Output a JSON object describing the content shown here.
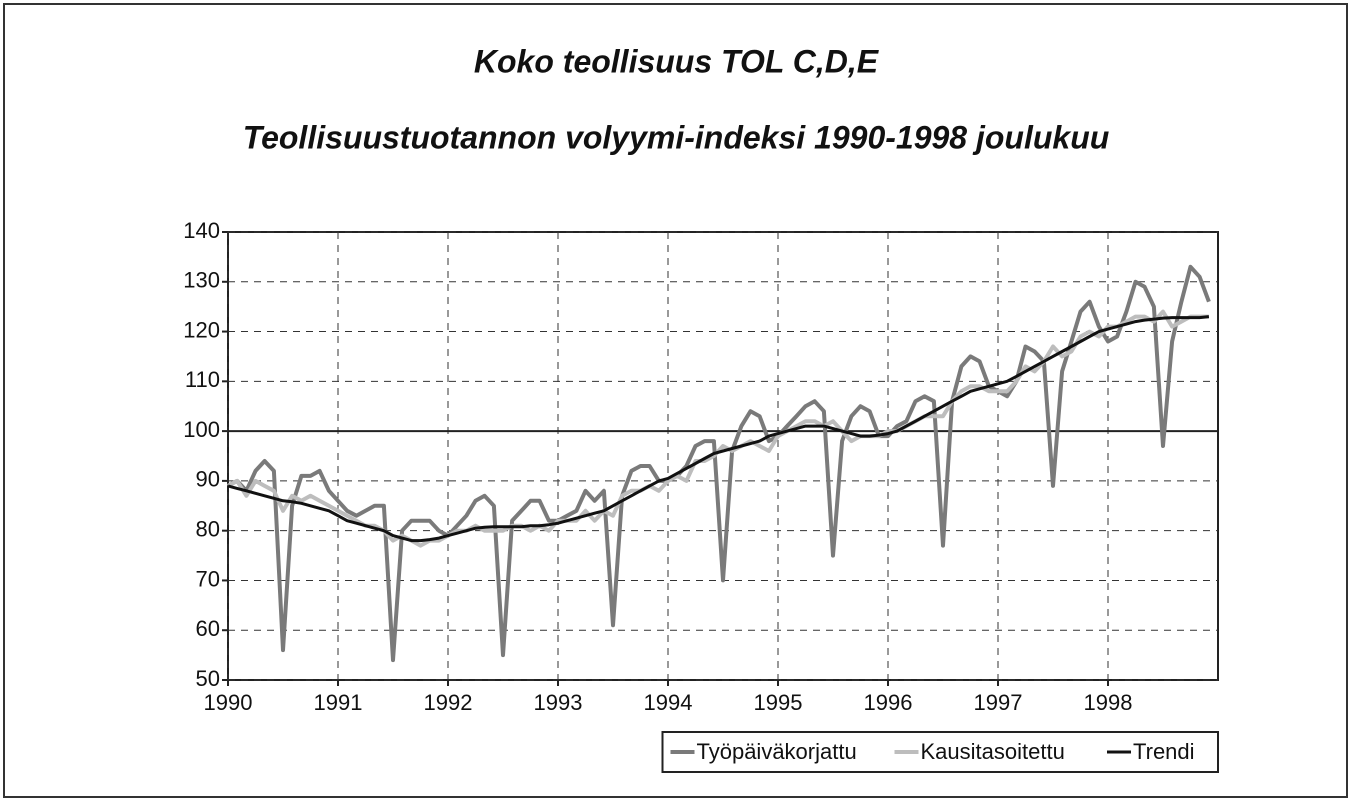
{
  "chart_data": {
    "type": "line",
    "title": "Koko teollisuus TOL C,D,E",
    "subtitle": "Teollisuustuotannon volyymi-indeksi 1990-1998 joulukuu",
    "xlim": [
      1990,
      1999
    ],
    "xticks": [
      1990,
      1991,
      1992,
      1993,
      1994,
      1995,
      1996,
      1997,
      1998
    ],
    "ylim": [
      50,
      140
    ],
    "yticks": [
      50,
      60,
      70,
      80,
      90,
      100,
      110,
      120,
      130,
      140
    ],
    "grid": true,
    "hline": 100,
    "legend_position": "bottom-right",
    "x": [
      1990,
      1990.083,
      1990.167,
      1990.25,
      1990.333,
      1990.417,
      1990.5,
      1990.583,
      1990.667,
      1990.75,
      1990.833,
      1990.917,
      1991,
      1991.083,
      1991.167,
      1991.25,
      1991.333,
      1991.417,
      1991.5,
      1991.583,
      1991.667,
      1991.75,
      1991.833,
      1991.917,
      1992,
      1992.083,
      1992.167,
      1992.25,
      1992.333,
      1992.417,
      1992.5,
      1992.583,
      1992.667,
      1992.75,
      1992.833,
      1992.917,
      1993,
      1993.083,
      1993.167,
      1993.25,
      1993.333,
      1993.417,
      1993.5,
      1993.583,
      1993.667,
      1993.75,
      1993.833,
      1993.917,
      1994,
      1994.083,
      1994.167,
      1994.25,
      1994.333,
      1994.417,
      1994.5,
      1994.583,
      1994.667,
      1994.75,
      1994.833,
      1994.917,
      1995,
      1995.083,
      1995.167,
      1995.25,
      1995.333,
      1995.417,
      1995.5,
      1995.583,
      1995.667,
      1995.75,
      1995.833,
      1995.917,
      1996,
      1996.083,
      1996.167,
      1996.25,
      1996.333,
      1996.417,
      1996.5,
      1996.583,
      1996.667,
      1996.75,
      1996.833,
      1996.917,
      1997,
      1997.083,
      1997.167,
      1997.25,
      1997.333,
      1997.417,
      1997.5,
      1997.583,
      1997.667,
      1997.75,
      1997.833,
      1997.917,
      1998,
      1998.083,
      1998.167,
      1998.25,
      1998.333,
      1998.417,
      1998.5,
      1998.583,
      1998.667,
      1998.75,
      1998.833,
      1998.917
    ],
    "series": [
      {
        "name": "Työpäiväkorjattu",
        "color": "#7a7a7a",
        "width": 4,
        "values": [
          89,
          90,
          88,
          92,
          94,
          92,
          56,
          85,
          91,
          91,
          92,
          88,
          86,
          84,
          83,
          84,
          85,
          85,
          54,
          80,
          82,
          82,
          82,
          80,
          79,
          81,
          83,
          86,
          87,
          85,
          55,
          82,
          84,
          86,
          86,
          82,
          82,
          83,
          84,
          88,
          86,
          88,
          61,
          87,
          92,
          93,
          93,
          90,
          90,
          91,
          93,
          97,
          98,
          98,
          70,
          96,
          101,
          104,
          103,
          98,
          99,
          101,
          103,
          105,
          106,
          104,
          75,
          98,
          103,
          105,
          104,
          99,
          99,
          101,
          102,
          106,
          107,
          106,
          77,
          106,
          113,
          115,
          114,
          109,
          108,
          107,
          110,
          117,
          116,
          114,
          89,
          112,
          118,
          124,
          126,
          121,
          118,
          119,
          124,
          130,
          129,
          125,
          97,
          118,
          126,
          133,
          131,
          126
        ]
      },
      {
        "name": "Kausitasoitettu",
        "color": "#bdbdbd",
        "width": 4,
        "values": [
          89,
          90,
          87,
          90,
          89,
          88,
          84,
          87,
          86,
          87,
          86,
          85,
          84,
          83,
          82,
          81,
          81,
          80,
          78,
          79,
          78,
          77,
          78,
          78,
          79,
          80,
          80,
          81,
          80,
          80,
          80,
          81,
          81,
          80,
          81,
          80,
          82,
          82,
          82,
          84,
          82,
          84,
          83,
          87,
          88,
          88,
          89,
          88,
          90,
          91,
          90,
          94,
          94,
          95,
          97,
          96,
          97,
          98,
          97,
          96,
          99,
          100,
          101,
          102,
          102,
          101,
          102,
          100,
          98,
          99,
          99,
          99,
          100,
          100,
          101,
          102,
          103,
          103,
          103,
          106,
          108,
          109,
          109,
          108,
          108,
          108,
          110,
          113,
          112,
          114,
          117,
          115,
          116,
          119,
          120,
          119,
          121,
          121,
          122,
          123,
          123,
          122,
          124,
          121,
          122,
          123,
          123,
          123
        ]
      },
      {
        "name": "Trendi",
        "color": "#111111",
        "width": 3,
        "values": [
          89,
          88.5,
          88,
          87.5,
          87,
          86.5,
          86,
          85.8,
          85.5,
          85,
          84.5,
          84,
          83,
          82,
          81.5,
          81,
          80.5,
          80,
          79,
          78.5,
          78,
          78,
          78.2,
          78.5,
          79,
          79.5,
          80,
          80.5,
          80.7,
          80.8,
          80.8,
          80.8,
          80.8,
          81,
          81,
          81.2,
          81.5,
          82,
          82.5,
          83,
          83.5,
          84,
          85,
          86,
          87,
          88,
          89,
          90,
          90.5,
          91.5,
          92.5,
          93.5,
          94.5,
          95.5,
          96,
          96.5,
          97,
          97.5,
          98,
          99,
          99.5,
          100,
          100.5,
          101,
          101,
          101,
          100.5,
          100,
          99.5,
          99,
          99,
          99.2,
          99.5,
          100,
          101,
          102,
          103,
          104,
          105,
          106,
          107,
          108,
          108.5,
          109,
          109.5,
          110,
          111,
          112,
          113,
          114,
          115,
          116,
          117,
          118,
          119,
          120,
          120.5,
          121,
          121.5,
          122,
          122.3,
          122.5,
          122.7,
          122.8,
          122.8,
          122.8,
          122.8,
          123
        ]
      }
    ]
  }
}
